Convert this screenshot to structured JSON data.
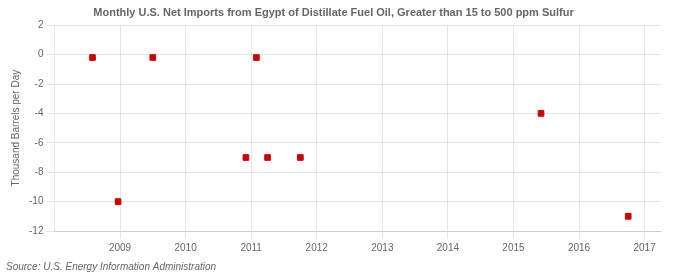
{
  "chart_data": {
    "type": "scatter",
    "title": "Monthly U.S. Net Imports from Egypt of Distillate Fuel Oil, Greater than 15 to 500 ppm Sulfur",
    "ylabel": "Thousand Barrels per Day",
    "annotation": "Source: U.S. Energy Information Administration",
    "x": [
      2008.58,
      2008.97,
      2009.5,
      2010.92,
      2011.25,
      2011.75,
      2011.08,
      2015.42,
      2016.75
    ],
    "values": [
      -0.2,
      -10.0,
      -0.2,
      -7.0,
      -7.0,
      -7.0,
      -0.2,
      -4.0,
      -11.0
    ],
    "color": "#cc0000",
    "marker": "square",
    "xlim": [
      2008.0,
      2017.25
    ],
    "ylim": [
      -12,
      2
    ],
    "xticks": [
      2009,
      2010,
      2011,
      2012,
      2013,
      2014,
      2015,
      2016,
      2017
    ],
    "yticks": [
      2,
      0,
      -2,
      -4,
      -6,
      -8,
      -10,
      -12
    ],
    "grid": true
  }
}
